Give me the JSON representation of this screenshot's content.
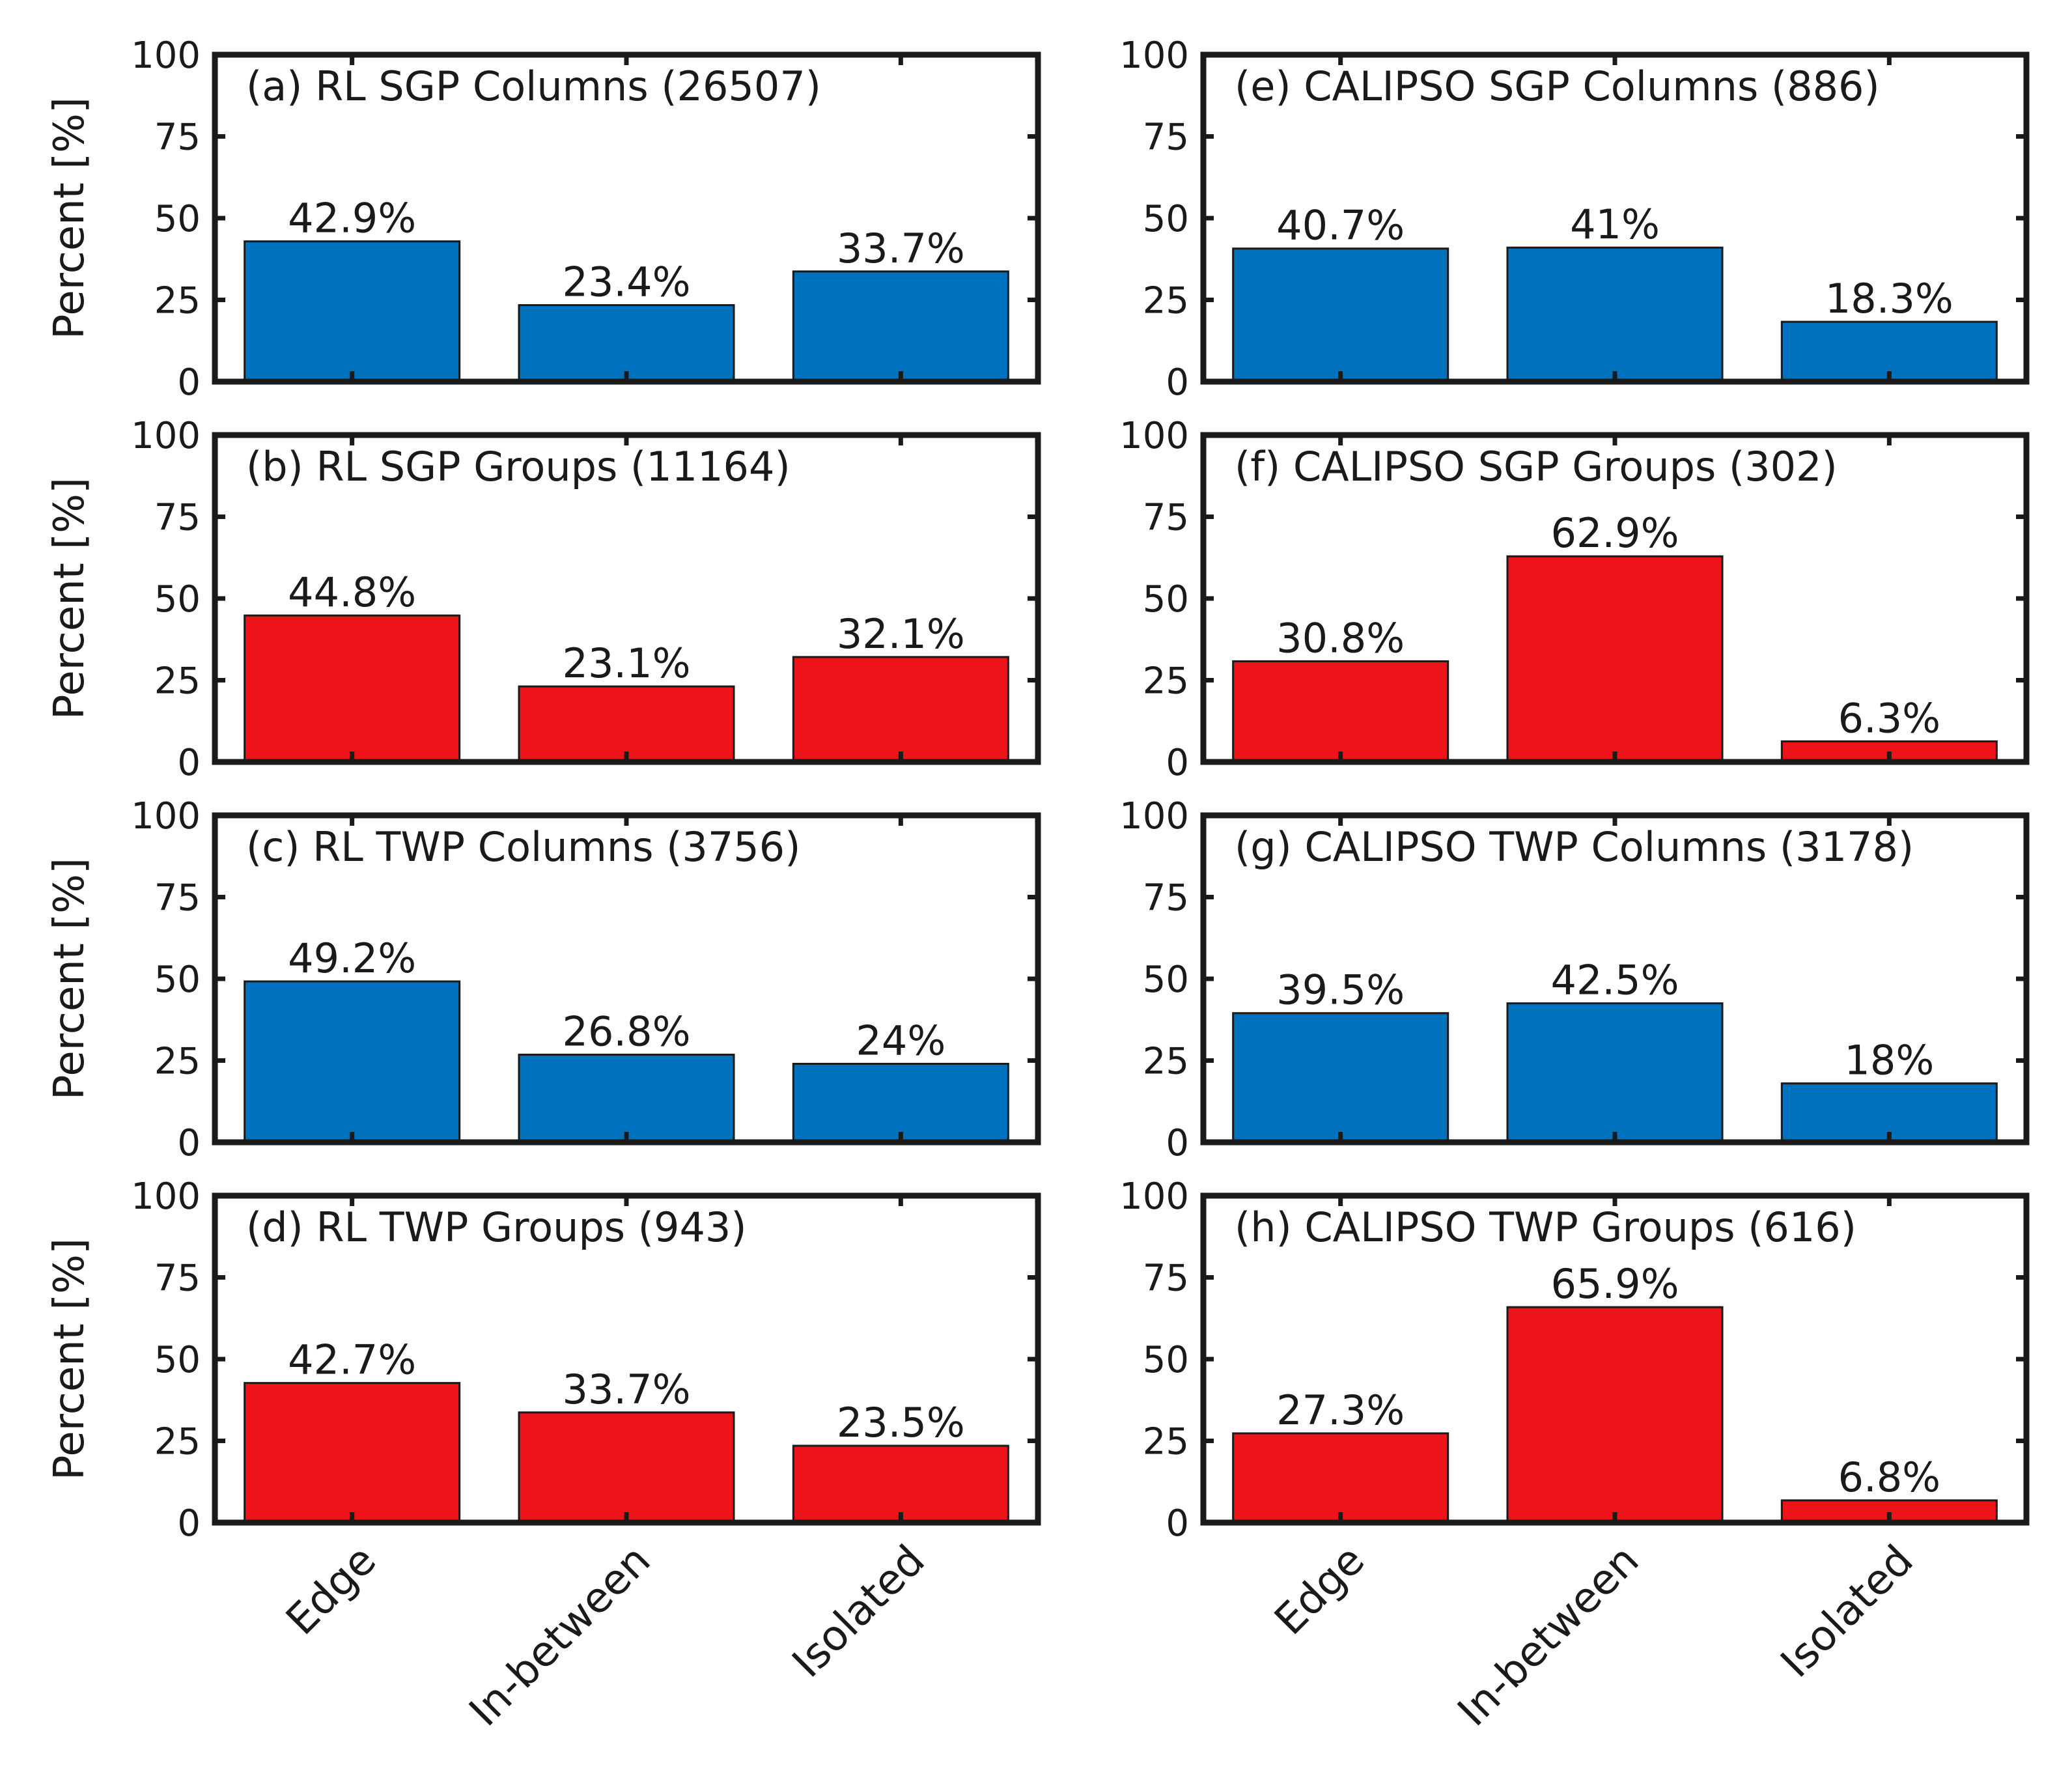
{
  "figure": {
    "ylabel": "Percent [%]",
    "yticks": [
      0,
      25,
      50,
      75,
      100
    ],
    "categories": [
      "Edge",
      "In-between",
      "Isolated"
    ],
    "colors": {
      "columns": "#0072bd",
      "groups": "#ed1318",
      "axis": "#1a1a1a",
      "bar_edge": "#1a1a1a"
    }
  },
  "chart_data": [
    {
      "id": "a",
      "type": "bar",
      "title": "(a) RL SGP Columns (26507)",
      "color": "#0072bd",
      "categories": [
        "Edge",
        "In-between",
        "Isolated"
      ],
      "values": [
        42.9,
        23.4,
        33.7
      ],
      "labels": [
        "42.9%",
        "23.4%",
        "33.7%"
      ],
      "ylabel": "Percent [%]",
      "ylim": [
        0,
        100
      ]
    },
    {
      "id": "b",
      "type": "bar",
      "title": "(b) RL SGP Groups (11164)",
      "color": "#ed1318",
      "categories": [
        "Edge",
        "In-between",
        "Isolated"
      ],
      "values": [
        44.8,
        23.1,
        32.1
      ],
      "labels": [
        "44.8%",
        "23.1%",
        "32.1%"
      ],
      "ylabel": "Percent [%]",
      "ylim": [
        0,
        100
      ]
    },
    {
      "id": "c",
      "type": "bar",
      "title": "(c) RL TWP Columns (3756)",
      "color": "#0072bd",
      "categories": [
        "Edge",
        "In-between",
        "Isolated"
      ],
      "values": [
        49.2,
        26.8,
        24
      ],
      "labels": [
        "49.2%",
        "26.8%",
        "24%"
      ],
      "ylabel": "Percent [%]",
      "ylim": [
        0,
        100
      ]
    },
    {
      "id": "d",
      "type": "bar",
      "title": "(d) RL TWP Groups (943)",
      "color": "#ed1318",
      "categories": [
        "Edge",
        "In-between",
        "Isolated"
      ],
      "values": [
        42.7,
        33.7,
        23.5
      ],
      "labels": [
        "42.7%",
        "33.7%",
        "23.5%"
      ],
      "ylabel": "Percent [%]",
      "ylim": [
        0,
        100
      ]
    },
    {
      "id": "e",
      "type": "bar",
      "title": "(e) CALIPSO SGP Columns (886)",
      "color": "#0072bd",
      "categories": [
        "Edge",
        "In-between",
        "Isolated"
      ],
      "values": [
        40.7,
        41,
        18.3
      ],
      "labels": [
        "40.7%",
        "41%",
        "18.3%"
      ],
      "ylabel": "",
      "ylim": [
        0,
        100
      ]
    },
    {
      "id": "f",
      "type": "bar",
      "title": "(f) CALIPSO SGP Groups (302)",
      "color": "#ed1318",
      "categories": [
        "Edge",
        "In-between",
        "Isolated"
      ],
      "values": [
        30.8,
        62.9,
        6.3
      ],
      "labels": [
        "30.8%",
        "62.9%",
        "6.3%"
      ],
      "ylabel": "",
      "ylim": [
        0,
        100
      ]
    },
    {
      "id": "g",
      "type": "bar",
      "title": "(g) CALIPSO TWP Columns (3178)",
      "color": "#0072bd",
      "categories": [
        "Edge",
        "In-between",
        "Isolated"
      ],
      "values": [
        39.5,
        42.5,
        18
      ],
      "labels": [
        "39.5%",
        "42.5%",
        "18%"
      ],
      "ylabel": "",
      "ylim": [
        0,
        100
      ]
    },
    {
      "id": "h",
      "type": "bar",
      "title": "(h) CALIPSO TWP Groups (616)",
      "color": "#ed1318",
      "categories": [
        "Edge",
        "In-between",
        "Isolated"
      ],
      "values": [
        27.3,
        65.9,
        6.8
      ],
      "labels": [
        "27.3%",
        "65.9%",
        "6.8%"
      ],
      "ylabel": "",
      "ylim": [
        0,
        100
      ]
    }
  ]
}
